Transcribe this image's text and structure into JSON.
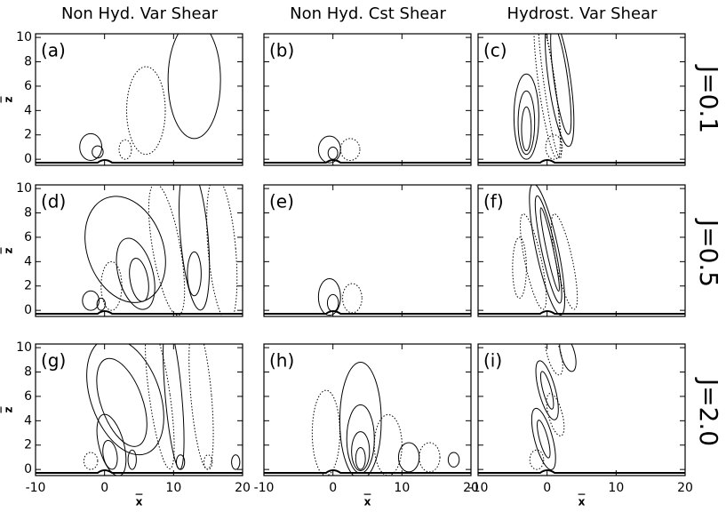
{
  "column_titles": [
    "Non Hyd. Var Shear",
    "Non Hyd. Cst Shear",
    "Hydrost. Var Shear"
  ],
  "row_labels": [
    "J=0.1",
    "J=0.5",
    "J=2.0"
  ],
  "chart_data": [
    {
      "type": "contour",
      "label": "(a)",
      "ylabel": "z",
      "xlim": [
        -10,
        20
      ],
      "ylim": [
        -0.5,
        10.3
      ],
      "xticks": [
        -10,
        0,
        10,
        20
      ],
      "yticks": [
        0,
        2,
        4,
        6,
        8,
        10
      ]
    },
    {
      "type": "contour",
      "label": "(b)",
      "xlim": [
        -10,
        20
      ],
      "ylim": [
        -0.5,
        10.3
      ],
      "xticks": [
        -10,
        0,
        10,
        20
      ],
      "yticks": [
        0,
        2,
        4,
        6,
        8,
        10
      ]
    },
    {
      "type": "contour",
      "label": "(c)",
      "xlim": [
        -10,
        20
      ],
      "ylim": [
        -0.5,
        10.3
      ],
      "xticks": [
        -10,
        0,
        10,
        20
      ],
      "yticks": [
        0,
        2,
        4,
        6,
        8,
        10
      ]
    },
    {
      "type": "contour",
      "label": "(d)",
      "ylabel": "z",
      "xlim": [
        -10,
        20
      ],
      "ylim": [
        -0.5,
        10.3
      ],
      "xticks": [
        -10,
        0,
        10,
        20
      ],
      "yticks": [
        0,
        2,
        4,
        6,
        8,
        10
      ]
    },
    {
      "type": "contour",
      "label": "(e)",
      "xlim": [
        -10,
        20
      ],
      "ylim": [
        -0.5,
        10.3
      ],
      "xticks": [
        -10,
        0,
        10,
        20
      ],
      "yticks": [
        0,
        2,
        4,
        6,
        8,
        10
      ]
    },
    {
      "type": "contour",
      "label": "(f)",
      "xlim": [
        -10,
        20
      ],
      "ylim": [
        -0.5,
        10.3
      ],
      "xticks": [
        -10,
        0,
        10,
        20
      ],
      "yticks": [
        0,
        2,
        4,
        6,
        8,
        10
      ]
    },
    {
      "type": "contour",
      "label": "(g)",
      "ylabel": "z",
      "xlabel": "x",
      "xlim": [
        -10,
        20
      ],
      "ylim": [
        -0.5,
        10.3
      ],
      "xticks": [
        -10,
        0,
        10,
        20
      ],
      "yticks": [
        0,
        2,
        4,
        6,
        8,
        10
      ]
    },
    {
      "type": "contour",
      "label": "(h)",
      "xlabel": "x",
      "xlim": [
        -10,
        20
      ],
      "ylim": [
        -0.5,
        10.3
      ],
      "xticks": [
        -10,
        0,
        10,
        20
      ],
      "yticks": [
        0,
        2,
        4,
        6,
        8,
        10
      ]
    },
    {
      "type": "contour",
      "label": "(i)",
      "xlabel": "x",
      "xlim": [
        -10,
        20
      ],
      "ylim": [
        -0.5,
        10.3
      ],
      "xticks": [
        -10,
        0,
        10,
        20
      ],
      "yticks": [
        0,
        2,
        4,
        6,
        8,
        10
      ]
    }
  ]
}
